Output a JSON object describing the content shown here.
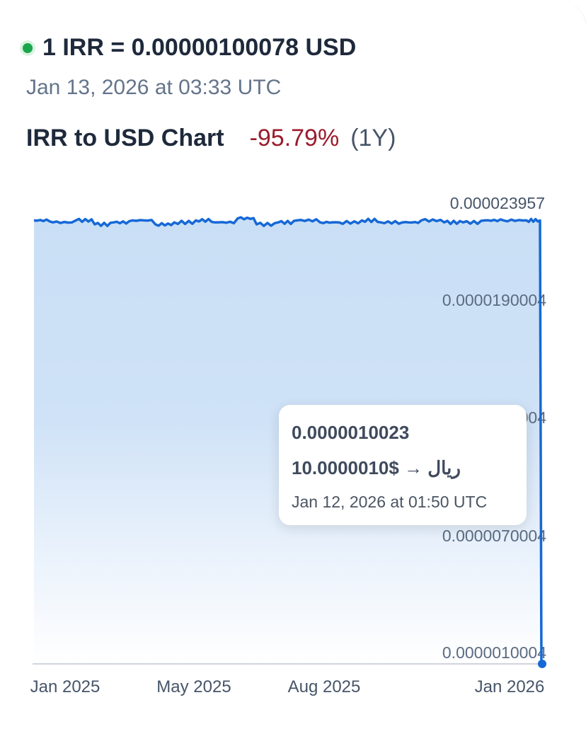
{
  "header": {
    "rate": "1 IRR = 0.00000100078 USD",
    "updated": "Jan 13, 2026 at 03:33 UTC",
    "status_color": "#1aa64b"
  },
  "chart_header": {
    "title": "IRR to USD Chart",
    "change": "-95.79%",
    "period": "(1Y)"
  },
  "tooltip": {
    "value": "0.0000010023",
    "conversion": "1ريال → $0.0000010",
    "date": "Jan 12, 2026 at 01:50 UTC"
  },
  "chart_data": {
    "type": "area",
    "color": "#1668d6",
    "fill": "#c9dff5",
    "ylim": [
      1.0004e-06,
      2.3957e-05
    ],
    "y_ticks": [
      "0.000023957",
      "0.0000190004",
      "0.0000130004",
      "0.0000070004",
      "0.0000010004"
    ],
    "x_ticks": [
      "Jan 2025",
      "May 2025",
      "Aug 2025",
      "Jan 2026"
    ],
    "grid": false,
    "x": [
      "2025-01-01",
      "2025-01-15",
      "2025-02-01",
      "2025-02-15",
      "2025-03-01",
      "2025-03-15",
      "2025-04-01",
      "2025-04-15",
      "2025-05-01",
      "2025-05-15",
      "2025-06-01",
      "2025-06-15",
      "2025-07-01",
      "2025-07-15",
      "2025-08-01",
      "2025-08-15",
      "2025-09-01",
      "2025-09-15",
      "2025-10-01",
      "2025-10-15",
      "2025-11-01",
      "2025-11-15",
      "2025-12-01",
      "2025-12-15",
      "2026-01-01",
      "2026-01-11",
      "2026-01-12"
    ],
    "values": [
      2.32e-05,
      2.31e-05,
      2.32e-05,
      2.3e-05,
      2.31e-05,
      2.32e-05,
      2.3e-05,
      2.31e-05,
      2.32e-05,
      2.31e-05,
      2.33e-05,
      2.3e-05,
      2.31e-05,
      2.32e-05,
      2.31e-05,
      2.31e-05,
      2.32e-05,
      2.31e-05,
      2.31e-05,
      2.32e-05,
      2.31e-05,
      2.31e-05,
      2.32e-05,
      2.32e-05,
      2.32e-05,
      2.32e-05,
      1.0023e-06
    ]
  }
}
